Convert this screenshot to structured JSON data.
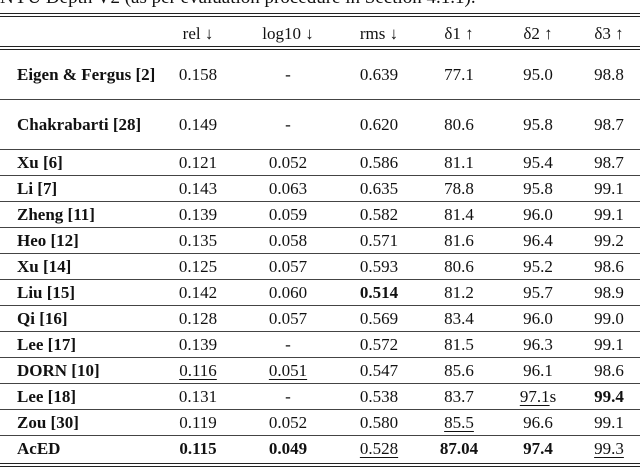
{
  "caption": "NYU Depth V2 (as per evaluation procedure in Section 4.1.1).",
  "headers": [
    "",
    "rel ↓",
    "log10 ↓",
    "rms ↓",
    "δ1 ↑",
    "δ2 ↑",
    "δ3 ↑"
  ],
  "rows": [
    {
      "name": "Eigen & Fergus [2]",
      "tall": true,
      "cells": [
        {
          "v": "0.158"
        },
        {
          "v": "-"
        },
        {
          "v": "0.639"
        },
        {
          "v": "77.1"
        },
        {
          "v": "95.0"
        },
        {
          "v": "98.8"
        }
      ]
    },
    {
      "name": "Chakrabarti [28]",
      "tall": true,
      "cells": [
        {
          "v": "0.149"
        },
        {
          "v": "-"
        },
        {
          "v": "0.620"
        },
        {
          "v": "80.6"
        },
        {
          "v": "95.8"
        },
        {
          "v": "98.7"
        }
      ]
    },
    {
      "name": "Xu [6]",
      "cells": [
        {
          "v": "0.121"
        },
        {
          "v": "0.052"
        },
        {
          "v": "0.586"
        },
        {
          "v": "81.1"
        },
        {
          "v": "95.4"
        },
        {
          "v": "98.7"
        }
      ]
    },
    {
      "name": "Li [7]",
      "cells": [
        {
          "v": "0.143"
        },
        {
          "v": "0.063"
        },
        {
          "v": "0.635"
        },
        {
          "v": "78.8"
        },
        {
          "v": "95.8"
        },
        {
          "v": "99.1"
        }
      ]
    },
    {
      "name": "Zheng [11]",
      "cells": [
        {
          "v": "0.139"
        },
        {
          "v": "0.059"
        },
        {
          "v": "0.582"
        },
        {
          "v": "81.4"
        },
        {
          "v": "96.0"
        },
        {
          "v": "99.1"
        }
      ]
    },
    {
      "name": "Heo [12]",
      "cells": [
        {
          "v": "0.135"
        },
        {
          "v": "0.058"
        },
        {
          "v": "0.571"
        },
        {
          "v": "81.6"
        },
        {
          "v": "96.4"
        },
        {
          "v": "99.2"
        }
      ]
    },
    {
      "name": "Xu [14]",
      "cells": [
        {
          "v": "0.125"
        },
        {
          "v": "0.057"
        },
        {
          "v": "0.593"
        },
        {
          "v": "80.6"
        },
        {
          "v": "95.2"
        },
        {
          "v": "98.6"
        }
      ]
    },
    {
      "name": "Liu [15]",
      "cells": [
        {
          "v": "0.142"
        },
        {
          "v": "0.060"
        },
        {
          "v": "0.514",
          "b": true
        },
        {
          "v": "81.2"
        },
        {
          "v": "95.7"
        },
        {
          "v": "98.9"
        }
      ]
    },
    {
      "name": "Qi [16]",
      "cells": [
        {
          "v": "0.128"
        },
        {
          "v": "0.057"
        },
        {
          "v": "0.569"
        },
        {
          "v": "83.4"
        },
        {
          "v": "96.0"
        },
        {
          "v": "99.0"
        }
      ]
    },
    {
      "name": "Lee [17]",
      "cells": [
        {
          "v": "0.139"
        },
        {
          "v": "-"
        },
        {
          "v": "0.572"
        },
        {
          "v": "81.5"
        },
        {
          "v": "96.3"
        },
        {
          "v": "99.1"
        }
      ]
    },
    {
      "name": "DORN [10]",
      "cells": [
        {
          "v": "0.116",
          "u": true
        },
        {
          "v": "0.051",
          "u": true
        },
        {
          "v": "0.547"
        },
        {
          "v": "85.6"
        },
        {
          "v": "96.1"
        },
        {
          "v": "98.6"
        }
      ]
    },
    {
      "name": "Lee [18]",
      "cells": [
        {
          "v": "0.131"
        },
        {
          "v": "-"
        },
        {
          "v": "0.538"
        },
        {
          "v": "83.7"
        },
        {
          "v": "97.1",
          "u": true,
          "suffix": "s"
        },
        {
          "v": "99.4",
          "b": true
        }
      ]
    },
    {
      "name": "Zou [30]",
      "cells": [
        {
          "v": "0.119"
        },
        {
          "v": "0.052"
        },
        {
          "v": "0.580"
        },
        {
          "v": "85.5",
          "u": true
        },
        {
          "v": "96.6"
        },
        {
          "v": "99.1"
        }
      ]
    },
    {
      "name": "AcED",
      "cells": [
        {
          "v": "0.115",
          "b": true
        },
        {
          "v": "0.049",
          "b": true
        },
        {
          "v": "0.528",
          "u": true
        },
        {
          "v": "87.04",
          "b": true
        },
        {
          "v": "97.4",
          "b": true
        },
        {
          "v": "99.3",
          "u": true
        }
      ]
    }
  ]
}
